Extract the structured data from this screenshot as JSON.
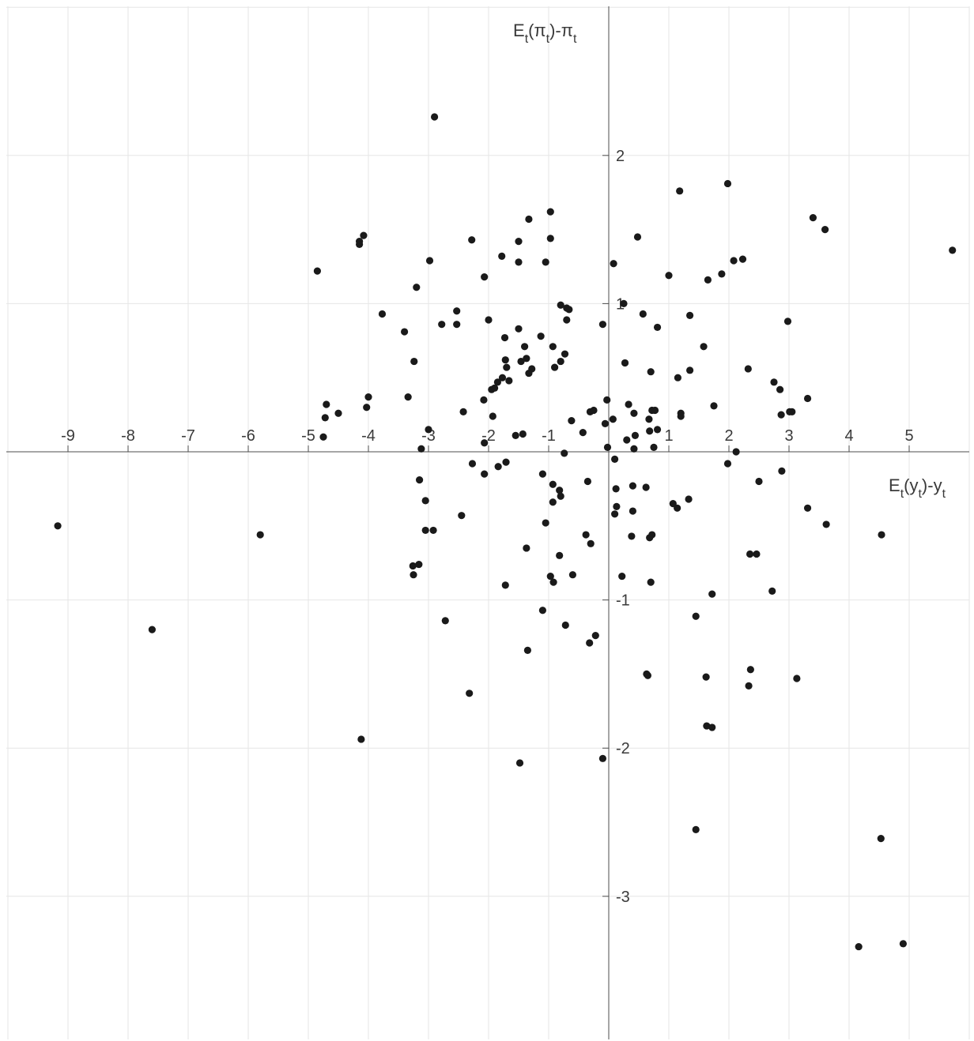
{
  "chart_data": {
    "type": "scatter",
    "title": "",
    "xlabel": {
      "base": "E",
      "sub1": "t",
      "mid": "(y",
      "sub2": "t",
      "end": ")-y",
      "sub3": "t"
    },
    "ylabel": {
      "base": "E",
      "sub1": "t",
      "mid": "(π",
      "sub2": "t",
      "end": ")-π",
      "sub3": "t"
    },
    "xlim": [
      -10,
      6
    ],
    "ylim": [
      -4,
      3
    ],
    "xticks": [
      -9,
      -8,
      -7,
      -6,
      -5,
      -4,
      -3,
      -2,
      -1,
      1,
      2,
      3,
      4,
      5
    ],
    "yticks": [
      2,
      1,
      -1,
      -2,
      -3
    ],
    "xtick_labels": [
      "-9",
      "-8",
      "-7",
      "-6",
      "-5",
      "-4",
      "-3",
      "-2",
      "-1",
      "1",
      "2",
      "3",
      "4",
      "5"
    ],
    "ytick_labels": [
      "2",
      "1",
      "-1",
      "-2",
      "-3"
    ],
    "grid": true,
    "marker_color": "#1a1a1a",
    "points": [
      [
        -9.17,
        -0.5
      ],
      [
        -7.6,
        -1.2
      ],
      [
        -5.8,
        -0.56
      ],
      [
        -4.12,
        -1.94
      ],
      [
        -4.85,
        1.22
      ],
      [
        -4.75,
        0.1
      ],
      [
        -4.7,
        0.32
      ],
      [
        -4.72,
        0.23
      ],
      [
        -4.5,
        0.26
      ],
      [
        -4.15,
        1.42
      ],
      [
        -4.15,
        1.4
      ],
      [
        -4.08,
        1.46
      ],
      [
        -4.03,
        0.3
      ],
      [
        -4.0,
        0.37
      ],
      [
        -3.77,
        0.93
      ],
      [
        -3.4,
        0.81
      ],
      [
        -3.34,
        0.37
      ],
      [
        -3.24,
        0.61
      ],
      [
        -3.2,
        1.11
      ],
      [
        -3.25,
        -0.83
      ],
      [
        -3.26,
        -0.77
      ],
      [
        -3.16,
        -0.76
      ],
      [
        -3.15,
        -0.19
      ],
      [
        -3.12,
        0.02
      ],
      [
        -3.05,
        -0.33
      ],
      [
        -3.05,
        -0.53
      ],
      [
        -3.0,
        0.15
      ],
      [
        -2.98,
        1.29
      ],
      [
        -2.92,
        -0.53
      ],
      [
        -2.9,
        2.26
      ],
      [
        -2.78,
        0.86
      ],
      [
        -2.72,
        -1.14
      ],
      [
        -2.53,
        0.95
      ],
      [
        -2.53,
        0.86
      ],
      [
        -2.45,
        -0.43
      ],
      [
        -2.42,
        0.27
      ],
      [
        -2.32,
        -1.63
      ],
      [
        -2.28,
        1.43
      ],
      [
        -2.27,
        -0.08
      ],
      [
        -2.08,
        0.35
      ],
      [
        -2.07,
        0.06
      ],
      [
        -2.07,
        1.18
      ],
      [
        -2.07,
        -0.15
      ],
      [
        -2.0,
        0.89
      ],
      [
        -1.95,
        0.42
      ],
      [
        -1.93,
        0.24
      ],
      [
        -1.9,
        0.43
      ],
      [
        -1.85,
        0.47
      ],
      [
        -1.84,
        -0.1
      ],
      [
        -1.78,
        1.32
      ],
      [
        -1.77,
        0.5
      ],
      [
        -1.73,
        0.77
      ],
      [
        -1.72,
        0.62
      ],
      [
        -1.7,
        0.57
      ],
      [
        -1.72,
        -0.9
      ],
      [
        -1.71,
        -0.07
      ],
      [
        -1.66,
        0.48
      ],
      [
        -1.55,
        0.11
      ],
      [
        -1.5,
        0.83
      ],
      [
        -1.48,
        -2.1
      ],
      [
        -1.5,
        1.28
      ],
      [
        -1.5,
        1.42
      ],
      [
        -1.46,
        0.61
      ],
      [
        -1.43,
        0.12
      ],
      [
        -1.4,
        0.71
      ],
      [
        -1.37,
        0.63
      ],
      [
        -1.37,
        -0.65
      ],
      [
        -1.35,
        -1.34
      ],
      [
        -1.33,
        1.57
      ],
      [
        -1.33,
        0.53
      ],
      [
        -1.28,
        0.56
      ],
      [
        -1.13,
        0.78
      ],
      [
        -1.1,
        -1.07
      ],
      [
        -1.1,
        -0.15
      ],
      [
        -1.05,
        1.28
      ],
      [
        -1.05,
        -0.48
      ],
      [
        -0.97,
        1.44
      ],
      [
        -0.97,
        1.62
      ],
      [
        -0.97,
        -0.84
      ],
      [
        -0.93,
        -0.22
      ],
      [
        -0.93,
        0.71
      ],
      [
        -0.93,
        -0.34
      ],
      [
        -0.92,
        -0.88
      ],
      [
        -0.9,
        0.57
      ],
      [
        -0.82,
        -0.7
      ],
      [
        -0.82,
        -0.26
      ],
      [
        -0.8,
        0.61
      ],
      [
        -0.8,
        -0.3
      ],
      [
        -0.8,
        0.99
      ],
      [
        -0.74,
        -0.01
      ],
      [
        -0.73,
        0.66
      ],
      [
        -0.72,
        -1.17
      ],
      [
        -0.7,
        0.89
      ],
      [
        -0.7,
        0.97
      ],
      [
        -0.66,
        0.96
      ],
      [
        -0.62,
        0.21
      ],
      [
        -0.6,
        -0.83
      ],
      [
        -0.43,
        0.13
      ],
      [
        -0.38,
        -0.56
      ],
      [
        -0.35,
        -0.2
      ],
      [
        -0.32,
        -1.29
      ],
      [
        -0.31,
        0.27
      ],
      [
        -0.3,
        -0.62
      ],
      [
        -0.25,
        0.28
      ],
      [
        -0.22,
        -1.24
      ],
      [
        -0.1,
        0.86
      ],
      [
        -0.1,
        -2.07
      ],
      [
        -0.06,
        0.19
      ],
      [
        -0.03,
        0.35
      ],
      [
        -0.02,
        0.03
      ],
      [
        0.07,
        0.22
      ],
      [
        0.08,
        1.27
      ],
      [
        0.1,
        -0.05
      ],
      [
        0.1,
        -0.42
      ],
      [
        0.13,
        -0.37
      ],
      [
        0.12,
        -0.25
      ],
      [
        0.22,
        -0.84
      ],
      [
        0.25,
        1.0
      ],
      [
        0.27,
        0.6
      ],
      [
        0.3,
        0.08
      ],
      [
        0.33,
        0.32
      ],
      [
        0.38,
        -0.57
      ],
      [
        0.4,
        -0.23
      ],
      [
        0.4,
        -0.4
      ],
      [
        0.42,
        0.02
      ],
      [
        0.42,
        0.26
      ],
      [
        0.44,
        0.11
      ],
      [
        0.48,
        1.45
      ],
      [
        0.57,
        0.93
      ],
      [
        0.62,
        -0.24
      ],
      [
        0.63,
        -1.5
      ],
      [
        0.65,
        -1.51
      ],
      [
        0.67,
        0.22
      ],
      [
        0.68,
        0.14
      ],
      [
        0.68,
        -0.58
      ],
      [
        0.7,
        0.54
      ],
      [
        0.72,
        -0.56
      ],
      [
        0.7,
        -0.88
      ],
      [
        0.72,
        0.28
      ],
      [
        0.75,
        0.03
      ],
      [
        0.77,
        0.28
      ],
      [
        0.81,
        0.15
      ],
      [
        0.81,
        0.84
      ],
      [
        1.0,
        1.19
      ],
      [
        1.07,
        -0.35
      ],
      [
        1.14,
        -0.38
      ],
      [
        1.15,
        0.5
      ],
      [
        1.18,
        1.76
      ],
      [
        1.2,
        0.26
      ],
      [
        1.2,
        0.24
      ],
      [
        1.33,
        -0.32
      ],
      [
        1.35,
        0.55
      ],
      [
        1.35,
        0.92
      ],
      [
        1.45,
        -1.11
      ],
      [
        1.45,
        -2.55
      ],
      [
        1.58,
        0.71
      ],
      [
        1.62,
        -1.52
      ],
      [
        1.63,
        -1.85
      ],
      [
        1.65,
        1.16
      ],
      [
        1.72,
        -0.96
      ],
      [
        1.72,
        -1.86
      ],
      [
        1.75,
        0.31
      ],
      [
        1.88,
        1.2
      ],
      [
        1.98,
        1.81
      ],
      [
        1.98,
        -0.08
      ],
      [
        2.08,
        1.29
      ],
      [
        2.12,
        0.0
      ],
      [
        2.23,
        1.3
      ],
      [
        2.32,
        0.56
      ],
      [
        2.33,
        -1.58
      ],
      [
        2.35,
        -0.69
      ],
      [
        2.36,
        -1.47
      ],
      [
        2.46,
        -0.69
      ],
      [
        2.5,
        -0.2
      ],
      [
        2.72,
        -0.94
      ],
      [
        2.75,
        0.47
      ],
      [
        2.85,
        0.42
      ],
      [
        2.87,
        0.25
      ],
      [
        2.88,
        -0.13
      ],
      [
        2.98,
        0.88
      ],
      [
        3.01,
        0.27
      ],
      [
        3.05,
        0.27
      ],
      [
        3.13,
        -1.53
      ],
      [
        3.31,
        0.36
      ],
      [
        3.31,
        -0.38
      ],
      [
        3.4,
        1.58
      ],
      [
        3.6,
        1.5
      ],
      [
        3.62,
        -0.49
      ],
      [
        4.16,
        -3.34
      ],
      [
        4.53,
        -2.61
      ],
      [
        4.54,
        -0.56
      ],
      [
        4.9,
        -3.32
      ],
      [
        5.72,
        1.36
      ]
    ]
  }
}
